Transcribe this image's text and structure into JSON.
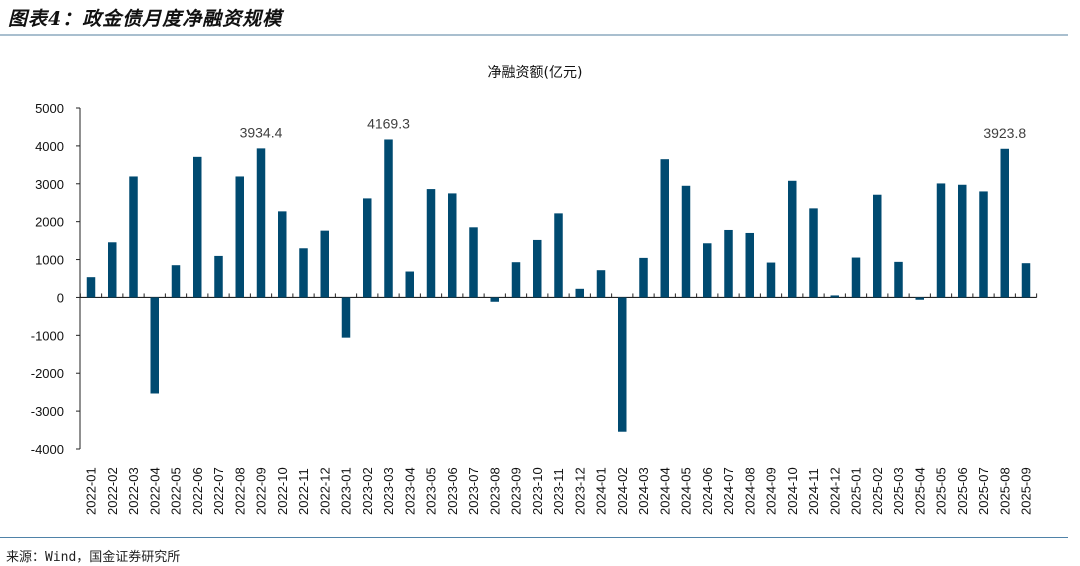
{
  "figure": {
    "title": "图表4：政金债月度净融资规模",
    "source": "来源：Wind，国金证券研究所"
  },
  "colors": {
    "bar": "#004a70",
    "axis": "#222222"
  },
  "chart_data": {
    "type": "bar",
    "title": "净融资额(亿元)",
    "xlabel": "",
    "ylabel": "",
    "ylim": [
      -4000,
      5000
    ],
    "yticks": [
      5000,
      4000,
      3000,
      2000,
      1000,
      0,
      -1000,
      -2000,
      -3000,
      -4000
    ],
    "grid": false,
    "categories": [
      "2022-01",
      "2022-02",
      "2022-03",
      "2022-04",
      "2022-05",
      "2022-06",
      "2022-07",
      "2022-08",
      "2022-09",
      "2022-10",
      "2022-11",
      "2022-12",
      "2023-01",
      "2023-02",
      "2023-03",
      "2023-04",
      "2023-05",
      "2023-06",
      "2023-07",
      "2023-08",
      "2023-09",
      "2023-10",
      "2023-11",
      "2023-12",
      "2024-01",
      "2024-02",
      "2024-03",
      "2024-04",
      "2024-05",
      "2024-06",
      "2024-07",
      "2024-08",
      "2024-09",
      "2024-10",
      "2024-11",
      "2024-12",
      "2025-01",
      "2025-02",
      "2025-03",
      "2025-04",
      "2025-05",
      "2025-06",
      "2025-07",
      "2025-08",
      "2025-09"
    ],
    "values": [
      535,
      1456,
      3193,
      -2535,
      851,
      3711,
      1096,
      3193,
      3934.4,
      2272,
      1298,
      1763,
      -1061,
      2614,
      4169.3,
      684,
      2860,
      2746,
      1851,
      -114,
      930,
      1518,
      2219,
      228,
      719,
      -3544,
      1044,
      3649,
      2947,
      1430,
      1781,
      1702,
      921,
      3079,
      2351,
      53,
      1053,
      2711,
      939,
      -61,
      3009,
      2974,
      2798,
      3923.8,
      904
    ],
    "annotations": [
      {
        "category": "2022-09",
        "text": "3934.4"
      },
      {
        "category": "2023-03",
        "text": "4169.3"
      },
      {
        "category": "2025-08",
        "text": "3923.8"
      }
    ]
  }
}
